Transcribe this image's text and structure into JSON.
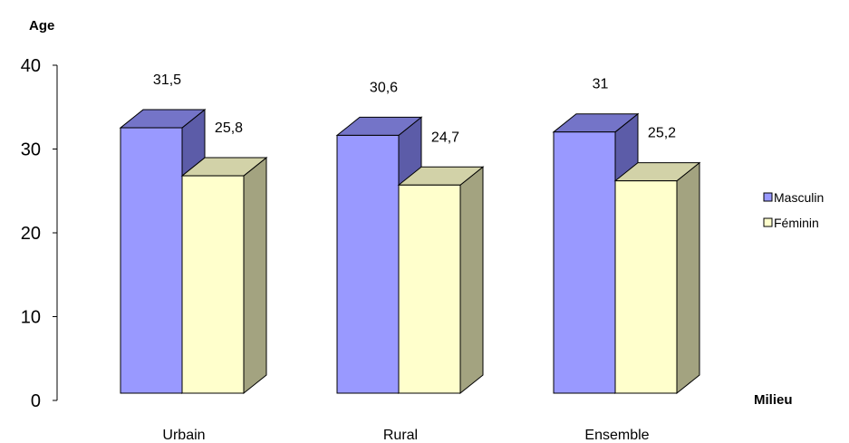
{
  "chart_data": {
    "type": "bar",
    "categories": [
      "Urbain",
      "Rural",
      "Ensemble"
    ],
    "series": [
      {
        "name": "Masculin",
        "values": [
          31.5,
          30.6,
          31
        ],
        "labels": [
          "31,5",
          "30,6",
          "31"
        ],
        "color_front": "#9999ff",
        "color_side": "#5c5ca8",
        "color_top": "#7474c8"
      },
      {
        "name": "Féminin",
        "values": [
          25.8,
          24.7,
          25.2
        ],
        "labels": [
          "25,8",
          "24,7",
          "25,2"
        ],
        "color_front": "#ffffcc",
        "color_side": "#a3a380",
        "color_top": "#d2d2a8"
      }
    ],
    "title": "",
    "xlabel": "Milieu",
    "ylabel": "Age",
    "ylim": [
      0,
      40
    ],
    "yticks": [
      0,
      10,
      20,
      30,
      40
    ],
    "grid": false,
    "legend_position": "right",
    "bar_style": "3d"
  }
}
